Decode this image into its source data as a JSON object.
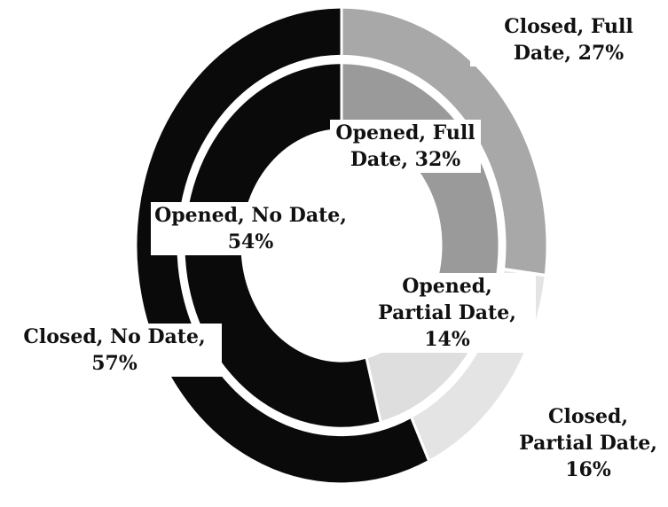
{
  "chart_data": {
    "type": "donut",
    "series": [
      {
        "values": [
          27,
          16,
          57
        ],
        "value_labels": [
          "Closed, Full Date, 27%",
          "Closed, Partial Date, 16%",
          "Closed, No Date, 57%"
        ],
        "colors": [
          "#a8a8a8",
          "#e4e4e4",
          "#0a0a0a"
        ]
      },
      {
        "values": [
          32,
          14,
          54
        ],
        "value_labels": [
          "Opened, Full Date, 32%",
          "Opened, Partial Date, 14%",
          "Opened, No Date, 54%"
        ],
        "colors": [
          "#9a9a9a",
          "#dedede",
          "#0a0a0a"
        ]
      }
    ]
  }
}
